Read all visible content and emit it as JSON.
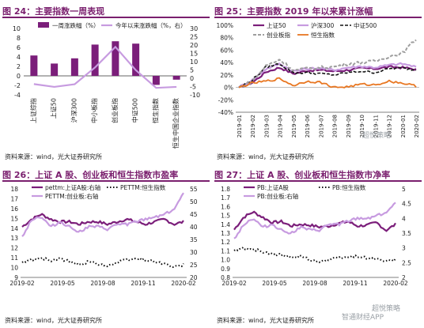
{
  "panels": {
    "p24": {
      "title": "图 24：主要指数一周表现",
      "source": "资料来源：wind，光大证券研究所"
    },
    "p25": {
      "title": "图 25：主要指数 2019 年以来累计涨幅",
      "source": "资料来源：wind，光大证券研究所"
    },
    "p26": {
      "title": "图 26：上证 A 股、创业板和恒生指数市盈率",
      "source": "资料来源：wind，光大证券研究所"
    },
    "p27": {
      "title": "图 27：上证 A 股、创业板和恒生指数市净率",
      "source": "资料来源：wind，光大证券研究所"
    }
  },
  "watermarks": {
    "w1": "超悦策略",
    "w2": "智通财经APP",
    "w3": "超悦策略"
  },
  "colors": {
    "purple": "#7b1e7a",
    "lavender": "#c79be0",
    "gray": "#9e9e9e",
    "orange": "#e87722",
    "black": "#111111"
  },
  "chart_data": [
    {
      "id": "p24",
      "type": "bar+line",
      "categories": [
        "上证综指",
        "上证50",
        "沪深300",
        "中小板指",
        "创业板指",
        "中证500",
        "恒生指数",
        "恒生中国企业指数"
      ],
      "series": [
        {
          "name": "一周涨跌幅（%）",
          "type": "bar",
          "axis": "left",
          "values": [
            4.3,
            2.6,
            3.7,
            6.6,
            7.3,
            6.8,
            -1.9,
            -0.8
          ]
        },
        {
          "name": "今年以来涨跌幅（%，右）",
          "type": "line",
          "axis": "right",
          "values": [
            -3.5,
            -5.2,
            -3.6,
            6.5,
            18.9,
            4.9,
            -5.8,
            -5.2
          ]
        }
      ],
      "ylim_left": [
        -4,
        10
      ],
      "yticks_left": [
        -4,
        -2,
        0,
        2,
        4,
        6,
        8,
        10
      ],
      "ylim_right": [
        -10,
        30
      ],
      "yticks_right": [
        -10,
        -5,
        0,
        5,
        10,
        15,
        20,
        25,
        30
      ],
      "legend": "top"
    },
    {
      "id": "p25",
      "type": "line",
      "x_labels": [
        "2019-01",
        "2019-02",
        "2019-03",
        "2019-04",
        "2019-05",
        "2019-06",
        "2019-07",
        "2019-08",
        "2019-09",
        "2019-10",
        "2019-11",
        "2019-12",
        "2020-01",
        "2020-02"
      ],
      "series": [
        {
          "name": "上证50",
          "style": "purple",
          "values": [
            0,
            8,
            25,
            32,
            22,
            27,
            28,
            26,
            28,
            31,
            30,
            33,
            32,
            29
          ]
        },
        {
          "name": "沪深300",
          "style": "lavender",
          "values": [
            0,
            12,
            30,
            38,
            26,
            30,
            31,
            28,
            32,
            34,
            32,
            36,
            38,
            33
          ]
        },
        {
          "name": "中证500",
          "style": "black-dash",
          "values": [
            0,
            12,
            33,
            38,
            23,
            24,
            22,
            20,
            24,
            26,
            24,
            30,
            31,
            28
          ]
        },
        {
          "name": "创业板指",
          "style": "gray-dash",
          "values": [
            0,
            10,
            35,
            45,
            28,
            30,
            32,
            33,
            38,
            40,
            42,
            50,
            55,
            78
          ]
        },
        {
          "name": "恒生指数",
          "style": "orange",
          "values": [
            0,
            7,
            10,
            14,
            3,
            10,
            8,
            0,
            1,
            5,
            4,
            10,
            7,
            2
          ]
        }
      ],
      "ylim": [
        -40,
        100
      ],
      "yticks": [
        "-40%",
        "-20%",
        "0%",
        "20%",
        "40%",
        "60%",
        "80%",
        "100%"
      ],
      "legend": "top"
    },
    {
      "id": "p26",
      "type": "line",
      "x_labels": [
        "2019-02",
        "2019-05",
        "2019-08",
        "2019-11",
        "2020-02"
      ],
      "series": [
        {
          "name": "pettm:上证A股:右轴",
          "style": "purple",
          "axis": "right",
          "values": [
            40,
            43,
            45,
            43,
            42,
            42,
            41,
            42,
            42,
            41,
            42,
            43,
            42,
            41,
            42,
            43,
            41,
            42
          ]
        },
        {
          "name": "PETTM:恒生指数",
          "style": "black-dot",
          "axis": "left",
          "values": [
            10.5,
            10.8,
            11.0,
            10.7,
            10.9,
            10.6,
            10.3,
            10.6,
            10.4,
            10.2,
            10.5,
            10.8,
            10.9,
            10.8,
            10.6,
            10.4,
            10.0,
            10.3
          ]
        },
        {
          "name": "PETTM:创业板:右轴",
          "style": "lavender",
          "axis": "right",
          "values": [
            36,
            43,
            44,
            40,
            42,
            40,
            38,
            40,
            40,
            39,
            41,
            41,
            42,
            43,
            44,
            45,
            47,
            53
          ]
        }
      ],
      "ylim_left": [
        9,
        18
      ],
      "yticks_left": [
        9,
        10,
        11,
        12,
        13,
        14,
        15,
        16,
        17,
        18
      ],
      "ylim_right": [
        20,
        55
      ],
      "yticks_right": [
        20,
        25,
        30,
        35,
        40,
        45,
        50,
        55
      ],
      "legend": "top"
    },
    {
      "id": "p27",
      "type": "line",
      "x_labels": [
        "2019-02",
        "2019-05",
        "2019-08",
        "2019-11",
        "2020-02"
      ],
      "series": [
        {
          "name": "PB:上证A股",
          "style": "purple",
          "axis": "left",
          "values": [
            1.34,
            1.48,
            1.54,
            1.48,
            1.42,
            1.43,
            1.38,
            1.4,
            1.39,
            1.37,
            1.38,
            1.41,
            1.43,
            1.38,
            1.39,
            1.42,
            1.33,
            1.4
          ]
        },
        {
          "name": "PB:恒生指数",
          "style": "black-dot",
          "axis": "left",
          "values": [
            1.1,
            1.13,
            1.12,
            1.09,
            1.06,
            1.05,
            1.03,
            1.04,
            1.0,
            0.98,
            1.0,
            1.02,
            1.03,
            1.04,
            1.02,
            1.01,
            0.98,
            1.0
          ]
        },
        {
          "name": "PB:创业板:右轴",
          "style": "lavender",
          "axis": "right",
          "values": [
            3.3,
            3.8,
            4.0,
            3.7,
            3.8,
            3.6,
            3.5,
            3.7,
            3.6,
            3.6,
            3.8,
            3.8,
            3.9,
            4.0,
            4.0,
            4.1,
            4.2,
            4.5
          ]
        }
      ],
      "ylim_left": [
        0.8,
        1.8
      ],
      "yticks_left": [
        0.8,
        0.9,
        1.0,
        1.1,
        1.2,
        1.3,
        1.4,
        1.5,
        1.6,
        1.7,
        1.8
      ],
      "ylim_right": [
        2,
        5
      ],
      "yticks_right": [
        2,
        2.5,
        3,
        3.5,
        4,
        4.5,
        5
      ],
      "legend": "top"
    }
  ]
}
